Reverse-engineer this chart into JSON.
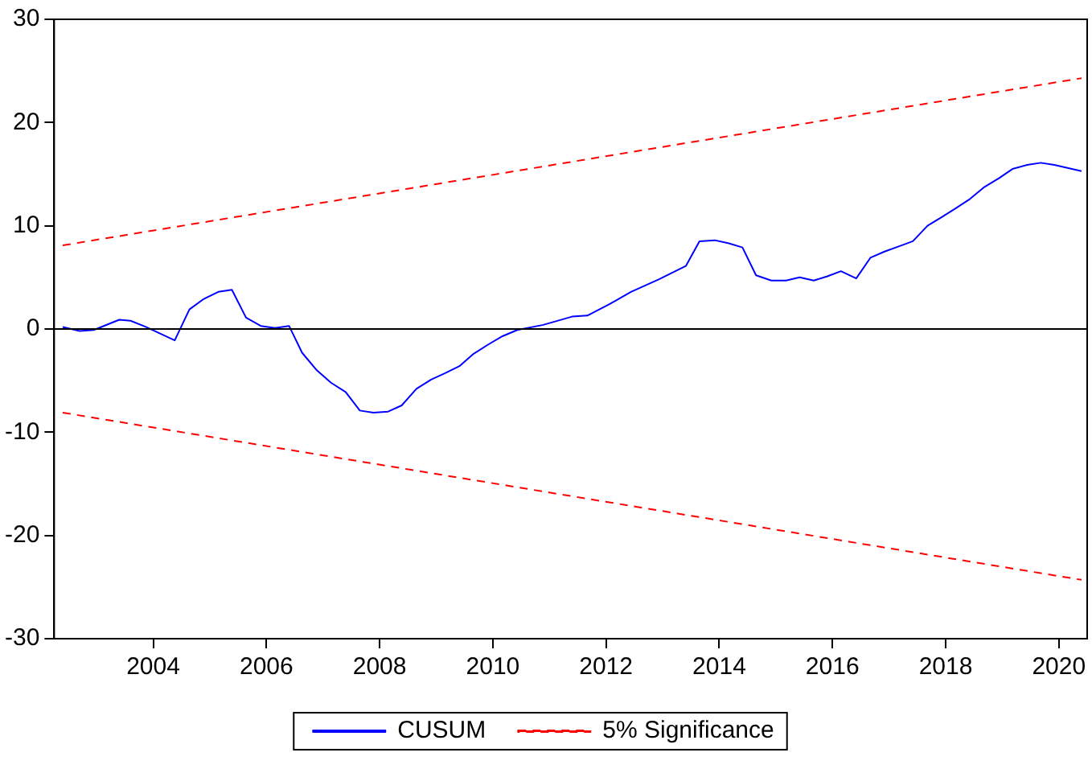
{
  "chart_data": {
    "type": "line",
    "xlim": [
      2002.75,
      2021
    ],
    "xticks": [
      {
        "value": 2004.5,
        "label": "2004"
      },
      {
        "value": 2006.5,
        "label": "2006"
      },
      {
        "value": 2008.5,
        "label": "2008"
      },
      {
        "value": 2010.5,
        "label": "2010"
      },
      {
        "value": 2012.5,
        "label": "2012"
      },
      {
        "value": 2014.5,
        "label": "2014"
      },
      {
        "value": 2016.5,
        "label": "2016"
      },
      {
        "value": 2018.5,
        "label": "2018"
      },
      {
        "value": 2020.5,
        "label": "2020"
      }
    ],
    "ylim": [
      -30,
      30
    ],
    "yticks": [
      -30,
      -20,
      -10,
      0,
      10,
      20,
      30
    ],
    "grid": false,
    "legend": "bottom",
    "ref_lines": [
      {
        "axis": "y",
        "value": 0,
        "color": "#000000",
        "line_style": "solid"
      }
    ],
    "series": [
      {
        "name": "CUSUM",
        "color": "#0000ff",
        "line_style": "solid",
        "x": [
          2002.9,
          2003.2,
          2003.45,
          2003.9,
          2004.1,
          2004.37,
          2004.88,
          2005.14,
          2005.39,
          2005.65,
          2005.89,
          2006.14,
          2006.4,
          2006.65,
          2006.9,
          2007.13,
          2007.39,
          2007.64,
          2007.9,
          2008.15,
          2008.39,
          2008.65,
          2008.89,
          2009.15,
          2009.41,
          2009.65,
          2009.91,
          2010.16,
          2010.42,
          2010.67,
          2010.93,
          2011.39,
          2011.9,
          2012.17,
          2012.56,
          2012.94,
          2013.43,
          2013.91,
          2014.15,
          2014.42,
          2014.67,
          2014.91,
          2015.15,
          2015.42,
          2015.68,
          2015.92,
          2016.17,
          2016.41,
          2016.65,
          2016.92,
          2017.17,
          2017.42,
          2017.67,
          2017.92,
          2018.18,
          2018.42,
          2018.68,
          2018.93,
          2019.17,
          2019.44,
          2019.68,
          2019.94,
          2020.18,
          2020.42,
          2020.9
        ],
        "values": [
          0.2,
          -0.2,
          -0.1,
          0.9,
          0.8,
          0.2,
          -1.1,
          1.9,
          2.9,
          3.6,
          3.8,
          1.1,
          0.3,
          0.1,
          0.3,
          -2.3,
          -4.0,
          -5.2,
          -6.1,
          -7.9,
          -8.1,
          -8.0,
          -7.4,
          -5.8,
          -4.9,
          -4.3,
          -3.6,
          -2.4,
          -1.5,
          -0.7,
          -0.1,
          0.4,
          1.2,
          1.3,
          2.4,
          3.6,
          4.8,
          6.1,
          8.5,
          8.6,
          8.3,
          7.9,
          5.2,
          4.7,
          4.7,
          5.0,
          4.7,
          5.1,
          5.6,
          4.9,
          6.9,
          7.5,
          8.0,
          8.5,
          10.0,
          10.8,
          11.7,
          12.6,
          13.7,
          14.6,
          15.5,
          15.9,
          16.1,
          15.9,
          15.3
        ]
      },
      {
        "name": "5% Significance",
        "color": "#ff0000",
        "line_style": "dashed",
        "x": [
          2002.9,
          2020.9
        ],
        "values": [
          8.1,
          24.3
        ]
      },
      {
        "color": "#ff0000",
        "line_style": "dashed",
        "x": [
          2002.9,
          2020.9
        ],
        "values": [
          -8.1,
          -24.3
        ]
      }
    ]
  }
}
